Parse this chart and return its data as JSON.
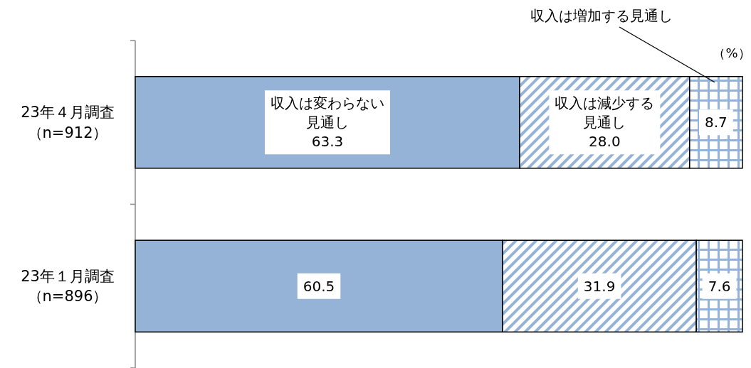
{
  "chart_data": {
    "type": "bar",
    "orientation": "horizontal",
    "stacked": true,
    "legend": false,
    "tick_labels": "y",
    "xlim": [
      0,
      100
    ],
    "categories": [
      "23年４月調査（n=912）",
      "23年１月調査（n=896）"
    ],
    "series": [
      {
        "name": "収入は変わらない見通し",
        "color": "#95b3d7",
        "values": [
          63.3,
          60.5
        ],
        "value_labels": [
          "63.3",
          "60.5"
        ]
      },
      {
        "name": "収入は減少する見通し",
        "color": "#95b3d7",
        "values": [
          28.0,
          31.9
        ],
        "value_labels": [
          "28.0",
          "31.9"
        ]
      },
      {
        "name": "収入は増加する見通し",
        "color": "#95b3d7",
        "values": [
          8.7,
          7.6
        ],
        "value_labels": [
          "8.7",
          "7.6"
        ]
      }
    ],
    "annotations": [
      "（%）"
    ]
  }
}
